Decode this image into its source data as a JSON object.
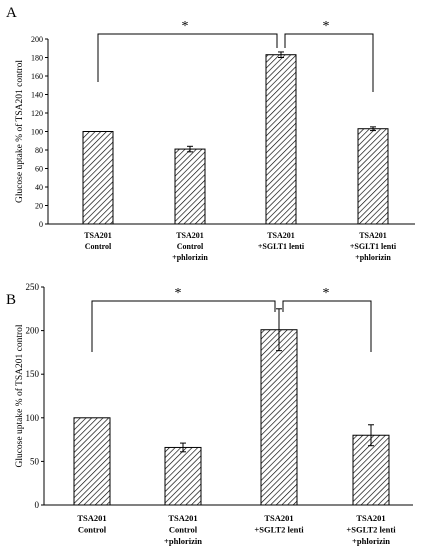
{
  "chart_data": [
    {
      "type": "bar",
      "panel_label": "A",
      "categories": [
        [
          "TSA201",
          "Control"
        ],
        [
          "TSA201",
          "Control",
          "+phlorizin"
        ],
        [
          "TSA201",
          "+SGLT1 lenti"
        ],
        [
          "TSA201",
          "+SGLT1 lenti",
          "+phlorizin"
        ]
      ],
      "values": [
        100,
        81,
        183,
        103
      ],
      "errors": [
        0,
        3,
        3,
        2
      ],
      "ylabel": "Glucose uptake % of TSA201 control",
      "ylim": [
        0,
        200
      ],
      "yticks": [
        "0",
        "20",
        "40",
        "60",
        "80",
        "100",
        "120",
        "140",
        "160",
        "180",
        "200"
      ],
      "significance": [
        "*",
        "*"
      ],
      "fill": "hatched"
    },
    {
      "type": "bar",
      "panel_label": "B",
      "categories": [
        [
          "TSA201",
          "Control"
        ],
        [
          "TSA201",
          "Control",
          "+phlorizin"
        ],
        [
          "TSA201",
          "+SGLT2 lenti"
        ],
        [
          "TSA201",
          "+SGLT2 lenti",
          "+phlorizin"
        ]
      ],
      "values": [
        100,
        66,
        201,
        80
      ],
      "errors": [
        0,
        5,
        24,
        12
      ],
      "ylabel": "Glucose uptake % of TSA201 control",
      "ylim": [
        0,
        250
      ],
      "yticks": [
        "0",
        "50",
        "100",
        "150",
        "200",
        "250"
      ],
      "significance": [
        "*",
        "*"
      ],
      "fill": "hatched"
    }
  ]
}
